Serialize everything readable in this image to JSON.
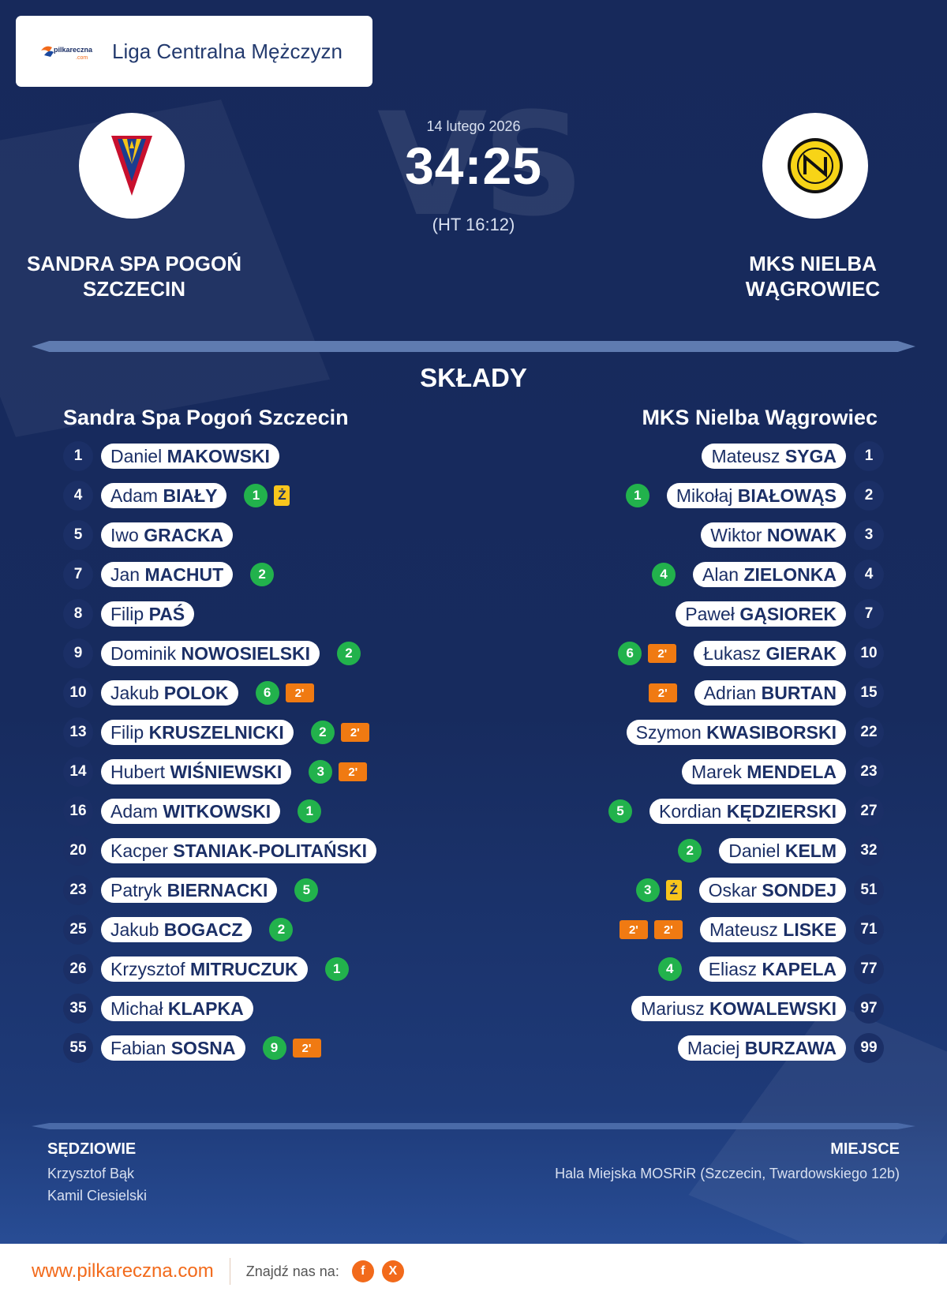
{
  "league": {
    "name": "Liga Centralna Mężczyzn"
  },
  "match": {
    "date": "14 lutego 2026",
    "score": "34:25",
    "halftime": "(HT 16:12)",
    "vs_watermark": "VS"
  },
  "home": {
    "title": "SANDRA SPA POGOŃ SZCZECIN",
    "name": "Sandra Spa Pogoń Szczecin",
    "players": [
      {
        "number": "1",
        "first": "Daniel",
        "last": "MAKOWSKI",
        "goals": "",
        "penalties": 0,
        "yellow": false
      },
      {
        "number": "4",
        "first": "Adam",
        "last": "BIAŁY",
        "goals": "1",
        "penalties": 0,
        "yellow": true
      },
      {
        "number": "5",
        "first": "Iwo",
        "last": "GRACKA",
        "goals": "",
        "penalties": 0,
        "yellow": false
      },
      {
        "number": "7",
        "first": "Jan",
        "last": "MACHUT",
        "goals": "2",
        "penalties": 0,
        "yellow": false
      },
      {
        "number": "8",
        "first": "Filip",
        "last": "PAŚ",
        "goals": "",
        "penalties": 0,
        "yellow": false
      },
      {
        "number": "9",
        "first": "Dominik",
        "last": "NOWOSIELSKI",
        "goals": "2",
        "penalties": 0,
        "yellow": false
      },
      {
        "number": "10",
        "first": "Jakub",
        "last": "POLOK",
        "goals": "6",
        "penalties": 1,
        "yellow": false
      },
      {
        "number": "13",
        "first": "Filip",
        "last": "KRUSZELNICKI",
        "goals": "2",
        "penalties": 1,
        "yellow": false
      },
      {
        "number": "14",
        "first": "Hubert",
        "last": "WIŚNIEWSKI",
        "goals": "3",
        "penalties": 1,
        "yellow": false
      },
      {
        "number": "16",
        "first": "Adam",
        "last": "WITKOWSKI",
        "goals": "1",
        "penalties": 0,
        "yellow": false
      },
      {
        "number": "20",
        "first": "Kacper",
        "last": "STANIAK-POLITAŃSKI",
        "goals": "",
        "penalties": 0,
        "yellow": false
      },
      {
        "number": "23",
        "first": "Patryk",
        "last": "BIERNACKI",
        "goals": "5",
        "penalties": 0,
        "yellow": false
      },
      {
        "number": "25",
        "first": "Jakub",
        "last": "BOGACZ",
        "goals": "2",
        "penalties": 0,
        "yellow": false
      },
      {
        "number": "26",
        "first": "Krzysztof",
        "last": "MITRUCZUK",
        "goals": "1",
        "penalties": 0,
        "yellow": false
      },
      {
        "number": "35",
        "first": "Michał",
        "last": "KLAPKA",
        "goals": "",
        "penalties": 0,
        "yellow": false
      },
      {
        "number": "55",
        "first": "Fabian",
        "last": "SOSNA",
        "goals": "9",
        "penalties": 1,
        "yellow": false
      }
    ]
  },
  "away": {
    "title": "MKS NIELBA WĄGROWIEC",
    "name": "MKS Nielba Wągrowiec",
    "players": [
      {
        "number": "1",
        "first": "Mateusz",
        "last": "SYGA",
        "goals": "",
        "penalties": 0,
        "yellow": false
      },
      {
        "number": "2",
        "first": "Mikołaj",
        "last": "BIAŁOWĄS",
        "goals": "1",
        "penalties": 0,
        "yellow": false
      },
      {
        "number": "3",
        "first": "Wiktor",
        "last": "NOWAK",
        "goals": "",
        "penalties": 0,
        "yellow": false
      },
      {
        "number": "4",
        "first": "Alan",
        "last": "ZIELONKA",
        "goals": "4",
        "penalties": 0,
        "yellow": false
      },
      {
        "number": "7",
        "first": "Paweł",
        "last": "GĄSIOREK",
        "goals": "",
        "penalties": 0,
        "yellow": false
      },
      {
        "number": "10",
        "first": "Łukasz",
        "last": "GIERAK",
        "goals": "6",
        "penalties": 1,
        "yellow": false
      },
      {
        "number": "15",
        "first": "Adrian",
        "last": "BURTAN",
        "goals": "",
        "penalties": 1,
        "yellow": false
      },
      {
        "number": "22",
        "first": "Szymon",
        "last": "KWASIBORSKI",
        "goals": "",
        "penalties": 0,
        "yellow": false
      },
      {
        "number": "23",
        "first": "Marek",
        "last": "MENDELA",
        "goals": "",
        "penalties": 0,
        "yellow": false
      },
      {
        "number": "27",
        "first": "Kordian",
        "last": "KĘDZIERSKI",
        "goals": "5",
        "penalties": 0,
        "yellow": false
      },
      {
        "number": "32",
        "first": "Daniel",
        "last": "KELM",
        "goals": "2",
        "penalties": 0,
        "yellow": false
      },
      {
        "number": "51",
        "first": "Oskar",
        "last": "SONDEJ",
        "goals": "3",
        "penalties": 0,
        "yellow": true
      },
      {
        "number": "71",
        "first": "Mateusz",
        "last": "LISKE",
        "goals": "",
        "penalties": 2,
        "yellow": false
      },
      {
        "number": "77",
        "first": "Eliasz",
        "last": "KAPELA",
        "goals": "4",
        "penalties": 0,
        "yellow": false
      },
      {
        "number": "97",
        "first": "Mariusz",
        "last": "KOWALEWSKI",
        "goals": "",
        "penalties": 0,
        "yellow": false
      },
      {
        "number": "99",
        "first": "Maciej",
        "last": "BURZAWA",
        "goals": "",
        "penalties": 0,
        "yellow": false
      }
    ]
  },
  "labels": {
    "lineups": "SKŁADY",
    "referees": "SĘDZIOWIE",
    "venue": "MIEJSCE",
    "penalty": "2'",
    "yellow_card": "Ż"
  },
  "referees": [
    "Krzysztof Bąk",
    "Kamil Ciesielski"
  ],
  "venue": "Hala Miejska MOSRiR (Szczecin, Twardowskiego 12b)",
  "footer": {
    "site": "www.pilkareczna.com",
    "find_us": "Znajdź nas na:",
    "facebook": "f",
    "x": "X"
  },
  "colors": {
    "background": "#17295b",
    "goal": "#22b24c",
    "penalty": "#f07a12",
    "yellow": "#f8c51c",
    "accent": "#f26a1b"
  },
  "icons": {
    "brand": "pilkareczna-logo",
    "home_crest": "pogon-szczecin-crest",
    "away_crest": "nielba-wagrowiec-crest"
  }
}
